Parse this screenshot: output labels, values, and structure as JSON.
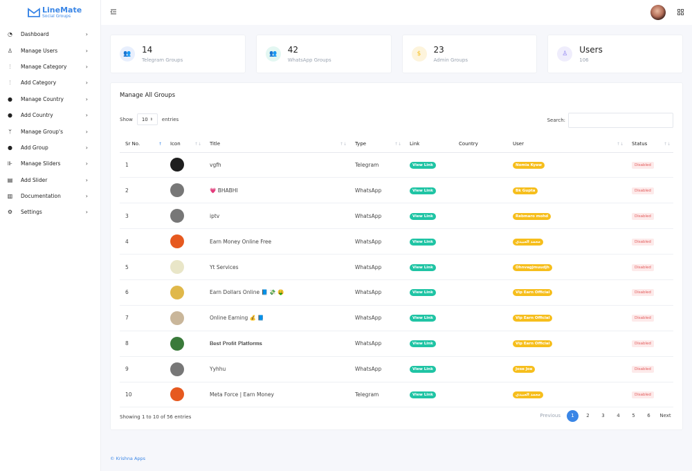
{
  "brand": {
    "title": "LineMate",
    "subtitle": "Social Groups",
    "color": "#3a86e6"
  },
  "sidebar": {
    "items": [
      {
        "label": "Dashboard",
        "icon": "dashboard-icon"
      },
      {
        "label": "Manage Users",
        "icon": "user-icon"
      },
      {
        "label": "Manage Category",
        "icon": "category-icon"
      },
      {
        "label": "Add Category",
        "icon": "category-icon"
      },
      {
        "label": "Manage Country",
        "icon": "globe-icon"
      },
      {
        "label": "Add Country",
        "icon": "globe-icon"
      },
      {
        "label": "Manage Group's",
        "icon": "branch-icon"
      },
      {
        "label": "Add Group",
        "icon": "globe-icon"
      },
      {
        "label": "Manage Sliders",
        "icon": "slider-icon"
      },
      {
        "label": "Add Slider",
        "icon": "file-icon"
      },
      {
        "label": "Documentation",
        "icon": "document-icon"
      },
      {
        "label": "Settings",
        "icon": "gear-icon"
      }
    ]
  },
  "stats": [
    {
      "value": "14",
      "label": "Telegram Groups",
      "color": "#5b8def",
      "bg": "#e8effd"
    },
    {
      "value": "42",
      "label": "WhatsApp Groups",
      "color": "#1fc4a4",
      "bg": "#e3f7f2"
    },
    {
      "value": "23",
      "label": "Admin Groups",
      "color": "#f6be1c",
      "bg": "#fdf4dc"
    },
    {
      "value": "Users",
      "label": "106",
      "color": "#8b7ff0",
      "bg": "#efedfc"
    }
  ],
  "groups": {
    "title": "Manage All Groups",
    "show_label": "Show",
    "entries_value": "10",
    "entries_label": "entries",
    "search_label": "Search:",
    "columns": [
      "Sr No.",
      "Icon",
      "Title",
      "Type",
      "Link",
      "Country",
      "User",
      "Status"
    ],
    "rows": [
      {
        "sr": "1",
        "title": "vgfh",
        "type": "Telegram",
        "link": "View Link",
        "country": "",
        "user": "Nomia Kyaw",
        "status": "Disabled",
        "icon_color": "#1e1e1e"
      },
      {
        "sr": "2",
        "title": "💗 BHABHI",
        "type": "WhatsApp",
        "link": "View Link",
        "country": "",
        "user": "Bk Gupta",
        "status": "Disabled",
        "icon_color": "#777777"
      },
      {
        "sr": "3",
        "title": "iptv",
        "type": "WhatsApp",
        "link": "View Link",
        "country": "",
        "user": "Rebmaro mohd",
        "status": "Disabled",
        "icon_color": "#777777"
      },
      {
        "sr": "4",
        "title": "Earn Money Online Free",
        "type": "WhatsApp",
        "link": "View Link",
        "country": "",
        "user": "محمد العبيدي",
        "status": "Disabled",
        "icon_color": "#e6591f"
      },
      {
        "sr": "5",
        "title": "Yt Services",
        "type": "WhatsApp",
        "link": "View Link",
        "country": "",
        "user": "Ohnvagjmuudjh",
        "status": "Disabled",
        "icon_color": "#e9e6c8"
      },
      {
        "sr": "6",
        "title": "Earn Dollars Online 📘 💸 🤑",
        "type": "WhatsApp",
        "link": "View Link",
        "country": "",
        "user": "Vip Earn Official",
        "status": "Disabled",
        "icon_color": "#e0b84a"
      },
      {
        "sr": "7",
        "title": "Online Earning 💰 📘",
        "type": "WhatsApp",
        "link": "View Link",
        "country": "",
        "user": "Vip Earn Official",
        "status": "Disabled",
        "icon_color": "#c9b69a"
      },
      {
        "sr": "8",
        "title": "𝐁𝐞𝐬𝐭 𝐏𝐫𝐨𝐟𝐢𝐭 𝐏𝐥𝐚𝐭𝐟𝐨𝐫𝐦𝐬",
        "type": "WhatsApp",
        "link": "View Link",
        "country": "",
        "user": "Vip Earn Official",
        "status": "Disabled",
        "icon_color": "#3a7a3a"
      },
      {
        "sr": "9",
        "title": "Yyhhu",
        "type": "WhatsApp",
        "link": "View Link",
        "country": "",
        "user": "Jose Joe",
        "status": "Disabled",
        "icon_color": "#777777"
      },
      {
        "sr": "10",
        "title": "Meta Force | Earn Money",
        "type": "Telegram",
        "link": "View Link",
        "country": "",
        "user": "محمد العبيدي",
        "status": "Disabled",
        "icon_color": "#e6591f"
      }
    ],
    "info": "Showing 1 to 10 of 56 entries",
    "pager": {
      "previous": "Previous",
      "pages": [
        "1",
        "2",
        "3",
        "4",
        "5",
        "6"
      ],
      "active": "1",
      "next": "Next"
    }
  },
  "footer": {
    "copyright": "© Krishna Apps"
  }
}
